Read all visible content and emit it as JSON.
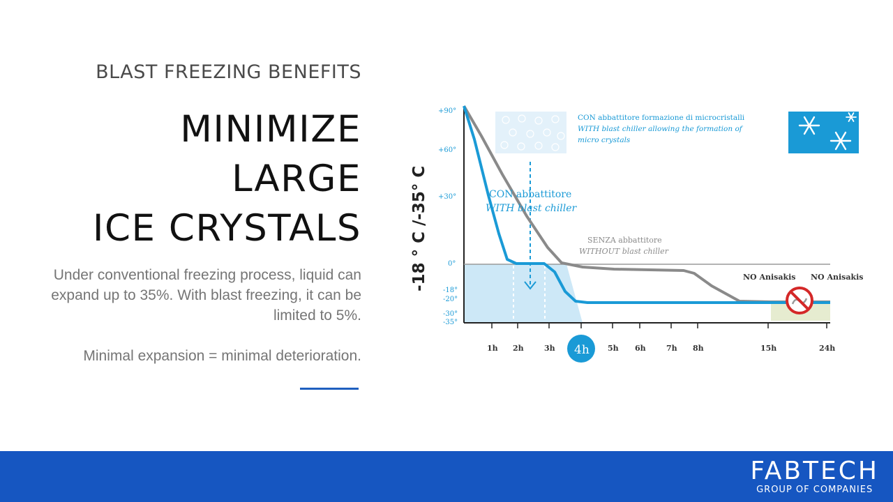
{
  "slide": {
    "eyebrow": "BLAST FREEZING BENEFITS",
    "title_lines": [
      "MINIMIZE",
      "LARGE",
      "ICE CRYSTALS"
    ],
    "body_paragraphs": [
      "Under conventional freezing process, liquid can expand up to 35%. With blast freezing, it can be limited to 5%.",
      "Minimal expansion = minimal deterioration."
    ],
    "accent_color": "#1f5fbf"
  },
  "chart": {
    "y_axis_title": "-18 ° C /-35° C",
    "microcrystal_caption_it": "CON abbattitore formazione di microcristalli",
    "microcrystal_caption_en": "WITH blast chiller allowing the formation of",
    "microcrystal_caption_en2": "micro crystals",
    "with_label_it": "CON abbattitore",
    "with_label_en": "WITH blast chiller",
    "without_label_it": "SENZA abbattitore",
    "without_label_en": "WITHOUT blast chiller",
    "no_anisakis_1": "NO Anisakis",
    "no_anisakis_2": "NO Anisakis",
    "highlight_time": "4h",
    "snowflake_icon": "snowflake-icon",
    "no_parasite_icon": "no-parasite-icon",
    "colors": {
      "with": "#1a9ad6",
      "without": "#8a8a8a",
      "zone": "#cde8f7",
      "safe_zone": "#e6ecd0"
    }
  },
  "chart_data": {
    "type": "line",
    "ylabel": "-18 ° C /-35° C",
    "y_ticks": [
      "+90°",
      "+60°",
      "+30°",
      "0°",
      "-18°",
      "-20°",
      "-30°",
      "-35°"
    ],
    "x_ticks": [
      "1h",
      "2h",
      "3h",
      "4h",
      "5h",
      "6h",
      "7h",
      "8h",
      "15h",
      "24h"
    ],
    "series": [
      {
        "name": "CON abbattitore / WITH blast chiller",
        "x": [
          "0h",
          "1h",
          "2h",
          "3h",
          "3.5h",
          "4h",
          "24h"
        ],
        "y": [
          90,
          30,
          0,
          0,
          -15,
          -20,
          -20
        ]
      },
      {
        "name": "SENZA abbattitore / WITHOUT blast chiller",
        "x": [
          "0h",
          "1h",
          "2h",
          "3h",
          "3.5h",
          "4h",
          "8h",
          "15h",
          "24h"
        ],
        "y": [
          90,
          70,
          45,
          15,
          2,
          0,
          -3,
          -20,
          -20
        ]
      }
    ]
  },
  "footer": {
    "brand_name": "FABTECH",
    "brand_tagline": "GROUP OF COMPANIES",
    "background": "#1656c1"
  }
}
